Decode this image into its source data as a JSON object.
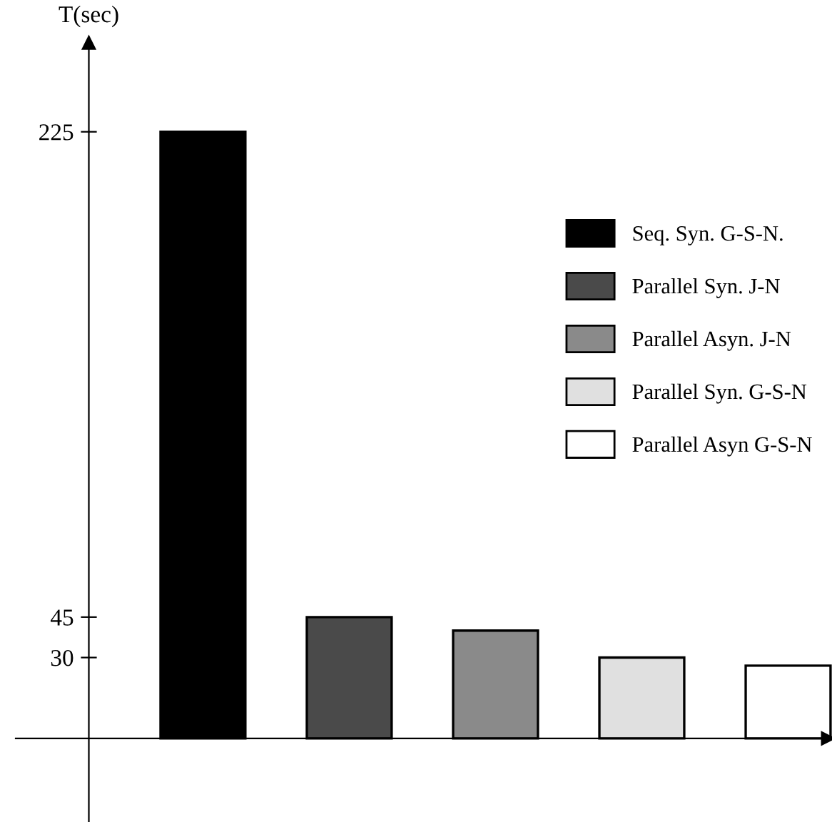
{
  "chart_data": {
    "type": "bar",
    "ylabel": "T(sec)",
    "categories": [
      null,
      null,
      null,
      null,
      null
    ],
    "series": [
      {
        "name": "Seq. Syn. G-S-N.",
        "color": "#000000",
        "values": [
          225,
          null,
          null,
          null,
          null
        ]
      },
      {
        "name": "Parallel Syn. J-N",
        "color": "#4a4a4a",
        "values": [
          null,
          45,
          null,
          null,
          null
        ]
      },
      {
        "name": "Parallel Asyn. J-N",
        "color": "#8a8a8a",
        "values": [
          null,
          null,
          40,
          null,
          null
        ]
      },
      {
        "name": "Parallel Syn. G-S-N",
        "color": "#e0e0e0",
        "values": [
          null,
          null,
          null,
          30,
          null
        ]
      },
      {
        "name": "Parallel Asyn G-S-N",
        "color": "#ffffff",
        "values": [
          null,
          null,
          null,
          null,
          27
        ]
      }
    ],
    "stacked": true,
    "ylim": [
      -31,
      258
    ],
    "yticks": [
      30,
      45,
      225
    ],
    "grid": false,
    "legend": "right"
  }
}
